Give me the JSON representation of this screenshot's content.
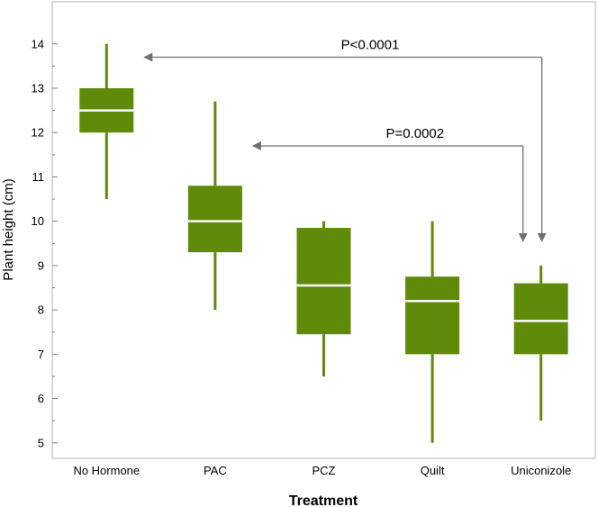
{
  "chart_data": {
    "type": "box",
    "xlabel": "Treatment",
    "ylabel": "Plant height (cm)",
    "ylim": [
      4.65,
      14.95
    ],
    "yticks": [
      5,
      6,
      7,
      8,
      9,
      10,
      11,
      12,
      13,
      14
    ],
    "minor_ticks": true,
    "grid": false,
    "color": "#5f8a0a",
    "median_color": "#ffffff",
    "categories": [
      "No Hormone",
      "PAC",
      "PCZ",
      "Quilt",
      "Uniconizole"
    ],
    "boxes": [
      {
        "category": "No Hormone",
        "min": 10.5,
        "q1": 12.0,
        "median": 12.5,
        "q3": 13.0,
        "max": 14.0
      },
      {
        "category": "PAC",
        "min": 8.0,
        "q1": 9.3,
        "median": 10.0,
        "q3": 10.8,
        "max": 12.7
      },
      {
        "category": "PCZ",
        "min": 6.5,
        "q1": 7.45,
        "median": 8.55,
        "q3": 9.85,
        "max": 10.0
      },
      {
        "category": "Quilt",
        "min": 5.0,
        "q1": 7.0,
        "median": 8.2,
        "q3": 8.75,
        "max": 10.0
      },
      {
        "category": "Uniconizole",
        "min": 5.5,
        "q1": 7.0,
        "median": 7.75,
        "q3": 8.6,
        "max": 9.0
      }
    ],
    "annotations": [
      {
        "text": "P<0.0001",
        "from": "Uniconizole",
        "to": "No Hormone",
        "level": 13.7
      },
      {
        "text": "P=0.0002",
        "from": "Uniconizole",
        "to": "PAC",
        "level": 11.7
      }
    ],
    "arrow_color": "#707070"
  }
}
